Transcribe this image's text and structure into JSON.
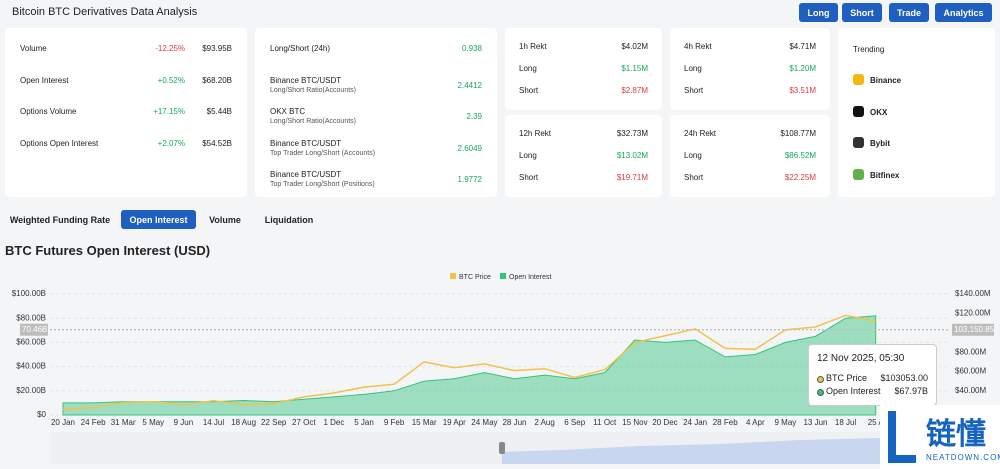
{
  "header": {
    "title": "Bitcoin BTC Derivatives Data Analysis",
    "buttons": [
      "Long",
      "Short",
      "Trade",
      "Analytics"
    ]
  },
  "market": [
    {
      "label": "Volume",
      "change": "-12.25%",
      "value": "$93.95B"
    },
    {
      "label": "Open Interest",
      "change": "+0.52%",
      "value": "$68.20B"
    },
    {
      "label": "Options Volume",
      "change": "+17.15%",
      "value": "$5.44B"
    },
    {
      "label": "Options Open Interest",
      "change": "+2.07%",
      "value": "$54.52B"
    }
  ],
  "ratios": [
    {
      "label": "Long/Short (24h)",
      "value": 0.938
    },
    {
      "label": "Binance BTC/USDT",
      "sublabel": "Long/Short Ratio(Accounts)",
      "value": 2.4412
    },
    {
      "label": "OKX BTC",
      "sublabel": "Long/Short Ratio(Accounts)",
      "value": 2.39
    },
    {
      "label": "Binance BTC/USDT",
      "sublabel": "Top Trader Long/Short (Accounts)",
      "value": 2.6049
    },
    {
      "label": "Binance BTC/USDT",
      "sublabel": "Top Trader Long/Short (Positions)",
      "value": 1.9772
    }
  ],
  "rekt": [
    [
      [
        "1h Rekt",
        "$4.02M"
      ],
      [
        "Long",
        "$1.15M"
      ],
      [
        "Short",
        "$2.87M"
      ]
    ],
    [
      [
        "4h Rekt",
        "$4.71M"
      ],
      [
        "Long",
        "$1.20M"
      ],
      [
        "Short",
        "$3.51M"
      ]
    ],
    [
      [
        "12h Rekt",
        "$32.73M"
      ],
      [
        "Long",
        "$13.02M"
      ],
      [
        "Short",
        "$19.71M"
      ]
    ],
    [
      [
        "24h Rekt",
        "$108.77M"
      ],
      [
        "Long",
        "$86.52M"
      ],
      [
        "Short",
        "$22.25M"
      ]
    ]
  ],
  "trending": {
    "title": "Trending",
    "items": [
      "Binance",
      "OKX",
      "Bybit",
      "Bitfinex"
    ]
  },
  "tabs": {
    "items": [
      "Weighted Funding Rate",
      "Open Interest",
      "Volume",
      "Liquidation"
    ],
    "active": 1
  },
  "watermark": {
    "text": "链懂",
    "url": "NEATDOWN.COM"
  },
  "chart_data": {
    "type": "area-line",
    "title": "BTC Futures Open Interest (USD)",
    "categories": [
      "20 Jan",
      "24 Feb",
      "31 Mar",
      "5 May",
      "9 Jun",
      "14 Jul",
      "18 Aug",
      "22 Sep",
      "27 Oct",
      "1 Dec",
      "5 Jan",
      "9 Feb",
      "15 Mar",
      "19 Apr",
      "24 May",
      "28 Jun",
      "2 Aug",
      "6 Sep",
      "11 Oct",
      "15 Nov",
      "20 Dec",
      "24 Jan",
      "28 Feb",
      "4 Apr",
      "9 May",
      "13 Jun",
      "18 Jul",
      "25 A"
    ],
    "series": [
      {
        "name": "BTC Price",
        "color": "#f2c14e",
        "axis": "y2",
        "values": [
          21000,
          23000,
          28000,
          29000,
          26000,
          30000,
          26000,
          27000,
          34000,
          38000,
          44000,
          47000,
          70000,
          64000,
          68000,
          61000,
          63000,
          54000,
          62000,
          90000,
          97000,
          104000,
          84000,
          83000,
          103000,
          106000,
          118000,
          112000
        ]
      },
      {
        "name": "Open Interest",
        "color": "#34c47c",
        "values": [
          10,
          10,
          11,
          11,
          11,
          11,
          12,
          11,
          13,
          15,
          17,
          20,
          28,
          30,
          35,
          30,
          33,
          30,
          35,
          62,
          60,
          62,
          48,
          50,
          60,
          65,
          80,
          82
        ]
      }
    ],
    "ylim": [
      0,
      100
    ],
    "yticks": [
      {
        "value": 0,
        "label": "$0"
      },
      {
        "value": 20,
        "label": "$20.00B"
      },
      {
        "value": 40,
        "label": "$40.00B"
      },
      {
        "value": 60,
        "label": "$60.00B"
      },
      {
        "value": 80,
        "label": "$80.00B"
      },
      {
        "value": 100,
        "label": "$100.00B"
      }
    ],
    "y2lim": [
      15300,
      140000
    ],
    "y2ticks": [
      {
        "value": 40000,
        "label": "$40.00M"
      },
      {
        "value": 60000,
        "label": "$60.00M"
      },
      {
        "value": 80000,
        "label": "$80.00M"
      },
      {
        "value": 120000,
        "label": "$120.00M"
      },
      {
        "value": 140000,
        "label": "$140.00M"
      }
    ],
    "markers": [
      {
        "axis": "y",
        "value": 70.46,
        "label": "70.46B"
      },
      {
        "axis": "y2",
        "value": 103150.85,
        "label": "103,150.85"
      }
    ],
    "tooltip": {
      "date": "12 Nov 2025, 05:30",
      "items": [
        {
          "name": "BTC Price",
          "value": 103053,
          "label": "$103053.00"
        },
        {
          "name": "Open Interest",
          "value": 67.97,
          "label": "$67.97B"
        }
      ]
    },
    "grid": true
  }
}
